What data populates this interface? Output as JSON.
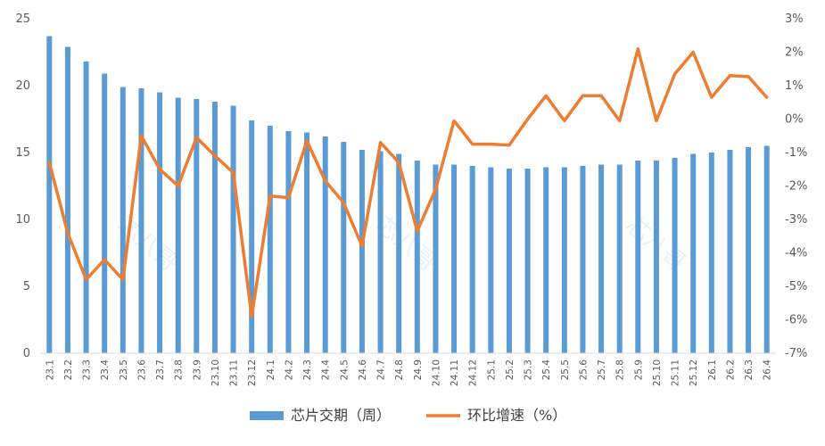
{
  "chart_data": {
    "type": "bar+line",
    "categories": [
      "23.1",
      "23.2",
      "23.3",
      "23.4",
      "23.5",
      "23.6",
      "23.7",
      "23.8",
      "23.9",
      "23.10",
      "23.11",
      "23.12",
      "24.1",
      "24.2",
      "24.3",
      "24.4",
      "24.5",
      "24.6",
      "24.7",
      "24.8",
      "24.9",
      "24.10",
      "24.11",
      "24.12",
      "25.1",
      "25.2",
      "25.3",
      "25.4",
      "25.5",
      "25.6",
      "25.7",
      "25.8",
      "25.9",
      "25.10",
      "25.11",
      "25.12",
      "26.1",
      "26.2",
      "26.3",
      "26.4"
    ],
    "series": [
      {
        "name": "芯片交期（周）",
        "type": "bar",
        "axis": "left",
        "color": "#5b9bd5",
        "values": [
          23.7,
          22.9,
          21.8,
          20.9,
          19.9,
          19.8,
          19.5,
          19.1,
          19.0,
          18.8,
          18.5,
          17.4,
          17.0,
          16.6,
          16.5,
          16.2,
          15.8,
          15.2,
          15.1,
          14.9,
          14.4,
          14.1,
          14.1,
          14.0,
          13.9,
          13.8,
          13.8,
          13.9,
          13.9,
          14.0,
          14.1,
          14.1,
          14.4,
          14.4,
          14.6,
          14.9,
          15.0,
          15.2,
          15.4,
          15.5
        ]
      },
      {
        "name": "环比增速（%）",
        "type": "line",
        "axis": "right",
        "color": "#ed7d31",
        "values": [
          -1.3,
          -3.4,
          -4.8,
          -4.2,
          -4.8,
          -0.5,
          -1.5,
          -2.0,
          -0.55,
          -1.1,
          -1.6,
          -5.9,
          -2.3,
          -2.35,
          -0.65,
          -1.85,
          -2.5,
          -3.8,
          -0.7,
          -1.3,
          -3.35,
          -2.1,
          -0.05,
          -0.75,
          -0.75,
          -0.78,
          0.0,
          0.7,
          -0.05,
          0.7,
          0.7,
          -0.05,
          2.1,
          -0.05,
          1.35,
          2.0,
          0.65,
          1.3,
          1.27,
          0.65
        ]
      }
    ],
    "y_left": {
      "ticks": [
        "25",
        "20",
        "15",
        "10",
        "5",
        "0"
      ],
      "min": 0,
      "max": 25,
      "step": 5
    },
    "y_right": {
      "ticks": [
        "3%",
        "2%",
        "1%",
        "0%",
        "-1%",
        "-2%",
        "-3%",
        "-4%",
        "-5%",
        "-6%",
        "-7%"
      ],
      "min": -7,
      "max": 3,
      "step": 1
    },
    "legend": {
      "position": "bottom",
      "bar_label": "芯片交期（周）",
      "line_label": "环比增速（%）"
    },
    "grid": false,
    "watermark": "芯八哥"
  }
}
